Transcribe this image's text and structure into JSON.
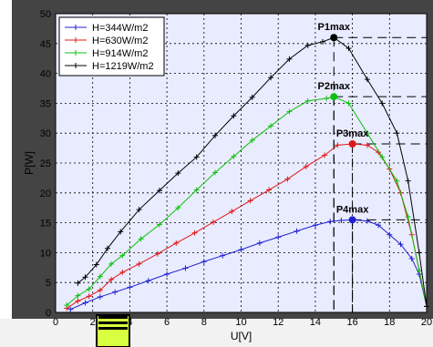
{
  "chart_data": {
    "type": "line",
    "title": "",
    "xlabel": "U[V]",
    "ylabel": "P[W]",
    "xlim": [
      0,
      20
    ],
    "ylim": [
      0,
      50
    ],
    "xticks": [
      0,
      2,
      4,
      6,
      8,
      10,
      12,
      14,
      16,
      18,
      20
    ],
    "yticks": [
      0,
      5,
      10,
      15,
      20,
      25,
      30,
      35,
      40,
      45,
      50
    ],
    "grid": true,
    "legend_position": "top-left",
    "colors": {
      "plot_bg": "#e9ecff",
      "outer_bg": "#444444",
      "grid": "#000000",
      "highlight": "#d8ff40"
    },
    "series": [
      {
        "name": "H=344W/m2",
        "color": "#2020d0",
        "marker": "+",
        "points": [
          [
            0.8,
            0.5
          ],
          [
            1.6,
            1.6
          ],
          [
            2.4,
            2.6
          ],
          [
            3.2,
            3.4
          ],
          [
            4.0,
            4.2
          ],
          [
            5.0,
            5.3
          ],
          [
            6.0,
            6.4
          ],
          [
            7.0,
            7.4
          ],
          [
            8.0,
            8.5
          ],
          [
            9.0,
            9.5
          ],
          [
            10.0,
            10.5
          ],
          [
            11.0,
            11.6
          ],
          [
            12.0,
            12.6
          ],
          [
            13.0,
            13.6
          ],
          [
            14.0,
            14.6
          ],
          [
            14.8,
            15.2
          ],
          [
            15.4,
            15.4
          ],
          [
            16.0,
            15.5
          ],
          [
            16.8,
            15.3
          ],
          [
            17.4,
            14.6
          ],
          [
            18.0,
            13.0
          ],
          [
            18.6,
            11.4
          ],
          [
            19.2,
            9.0
          ],
          [
            19.6,
            6.4
          ],
          [
            20.0,
            1.0
          ]
        ]
      },
      {
        "name": "H=630W/m2",
        "color": "#e01818",
        "marker": "+",
        "points": [
          [
            0.6,
            0.7
          ],
          [
            1.2,
            1.9
          ],
          [
            1.8,
            2.7
          ],
          [
            2.4,
            3.7
          ],
          [
            3.0,
            5.5
          ],
          [
            3.6,
            6.7
          ],
          [
            4.5,
            8.1
          ],
          [
            5.5,
            9.8
          ],
          [
            6.5,
            11.6
          ],
          [
            7.5,
            13.3
          ],
          [
            8.5,
            15.1
          ],
          [
            9.5,
            16.9
          ],
          [
            10.5,
            18.7
          ],
          [
            11.5,
            20.5
          ],
          [
            12.5,
            22.3
          ],
          [
            13.5,
            24.4
          ],
          [
            14.5,
            26.3
          ],
          [
            15.2,
            28.0
          ],
          [
            16.0,
            28.2
          ],
          [
            16.8,
            28.0
          ],
          [
            17.4,
            26.8
          ],
          [
            18.0,
            24.0
          ],
          [
            18.6,
            20.0
          ],
          [
            19.2,
            13.0
          ],
          [
            19.6,
            7.0
          ],
          [
            20.0,
            1.0
          ]
        ]
      },
      {
        "name": "H=914W/m2",
        "color": "#10c010",
        "marker": "+",
        "points": [
          [
            0.6,
            1.2
          ],
          [
            1.2,
            2.8
          ],
          [
            1.8,
            3.9
          ],
          [
            2.4,
            6.0
          ],
          [
            3.0,
            8.1
          ],
          [
            3.6,
            9.5
          ],
          [
            4.6,
            12.3
          ],
          [
            5.6,
            14.7
          ],
          [
            6.6,
            17.5
          ],
          [
            7.6,
            20.5
          ],
          [
            8.6,
            23.4
          ],
          [
            9.6,
            26.1
          ],
          [
            10.6,
            28.8
          ],
          [
            11.6,
            31.2
          ],
          [
            12.6,
            33.6
          ],
          [
            13.6,
            35.4
          ],
          [
            14.6,
            35.8
          ],
          [
            15.0,
            36.1
          ],
          [
            15.8,
            35.0
          ],
          [
            16.8,
            30.0
          ],
          [
            17.6,
            26.0
          ],
          [
            18.4,
            22.0
          ],
          [
            19.0,
            16.0
          ],
          [
            19.6,
            7.0
          ],
          [
            20.0,
            1.0
          ]
        ]
      },
      {
        "name": "H=1219W/m2",
        "color": "#000000",
        "marker": "+",
        "points": [
          [
            1.2,
            4.9
          ],
          [
            1.6,
            5.9
          ],
          [
            2.2,
            8.0
          ],
          [
            2.8,
            10.7
          ],
          [
            3.5,
            13.5
          ],
          [
            4.5,
            17.2
          ],
          [
            5.6,
            20.4
          ],
          [
            6.6,
            23.3
          ],
          [
            7.6,
            26.0
          ],
          [
            8.6,
            29.6
          ],
          [
            9.6,
            32.9
          ],
          [
            10.6,
            36.0
          ],
          [
            11.6,
            39.3
          ],
          [
            12.6,
            42.4
          ],
          [
            13.6,
            44.7
          ],
          [
            14.4,
            45.3
          ],
          [
            15.0,
            46.0
          ],
          [
            15.8,
            44.2
          ],
          [
            16.8,
            39.0
          ],
          [
            17.6,
            35.0
          ],
          [
            18.4,
            30.0
          ],
          [
            19.0,
            22.0
          ],
          [
            19.6,
            10.0
          ],
          [
            20.0,
            1.0
          ]
        ]
      }
    ],
    "max_points": [
      {
        "label": "P1max",
        "x": 15.0,
        "y": 46.0,
        "color": "#000000"
      },
      {
        "label": "P2max",
        "x": 15.0,
        "y": 36.1,
        "color": "#10c010"
      },
      {
        "label": "P3max",
        "x": 16.0,
        "y": 28.2,
        "color": "#e01818"
      },
      {
        "label": "P4max",
        "x": 16.0,
        "y": 15.5,
        "color": "#2020d0"
      }
    ]
  }
}
